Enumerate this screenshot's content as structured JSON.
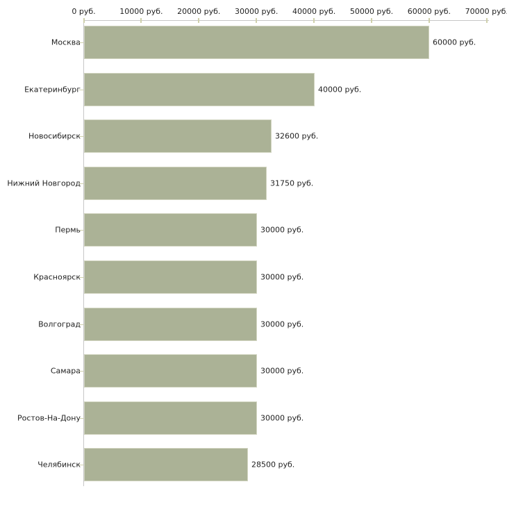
{
  "chart_data": {
    "type": "bar",
    "orientation": "horizontal",
    "title": "",
    "unit": "руб.",
    "categories": [
      "Москва",
      "Екатеринбург",
      "Новосибирск",
      "Нижний Новгород",
      "Пермь",
      "Красноярск",
      "Волгоград",
      "Самара",
      "Ростов-На-Дону",
      "Челябинск"
    ],
    "values": [
      60000,
      40000,
      32600,
      31750,
      30000,
      30000,
      30000,
      30000,
      30000,
      28500
    ],
    "value_labels": [
      "60000 руб.",
      "40000 руб.",
      "32600 руб.",
      "31750 руб.",
      "30000 руб.",
      "30000 руб.",
      "30000 руб.",
      "30000 руб.",
      "30000 руб.",
      "28500 руб."
    ],
    "x_axis": {
      "tick_labels": [
        "0 руб.",
        "10000 руб.",
        "20000 руб.",
        "30000 руб.",
        "40000 руб.",
        "50000 руб.",
        "60000 руб.",
        "70000 руб."
      ],
      "tick_values": [
        0,
        10000,
        20000,
        30000,
        40000,
        50000,
        60000,
        70000
      ],
      "position": "top"
    },
    "xlim": [
      0,
      70000
    ],
    "grid": false,
    "legend": "none",
    "colors": {
      "bar_fill": "#abb296",
      "bar_border": "#d2d5c1",
      "axis_line": "#c6c6c6",
      "tick_mark": "#cfd0ab",
      "text": "#1f1f1f",
      "background": "#ffffff"
    }
  }
}
